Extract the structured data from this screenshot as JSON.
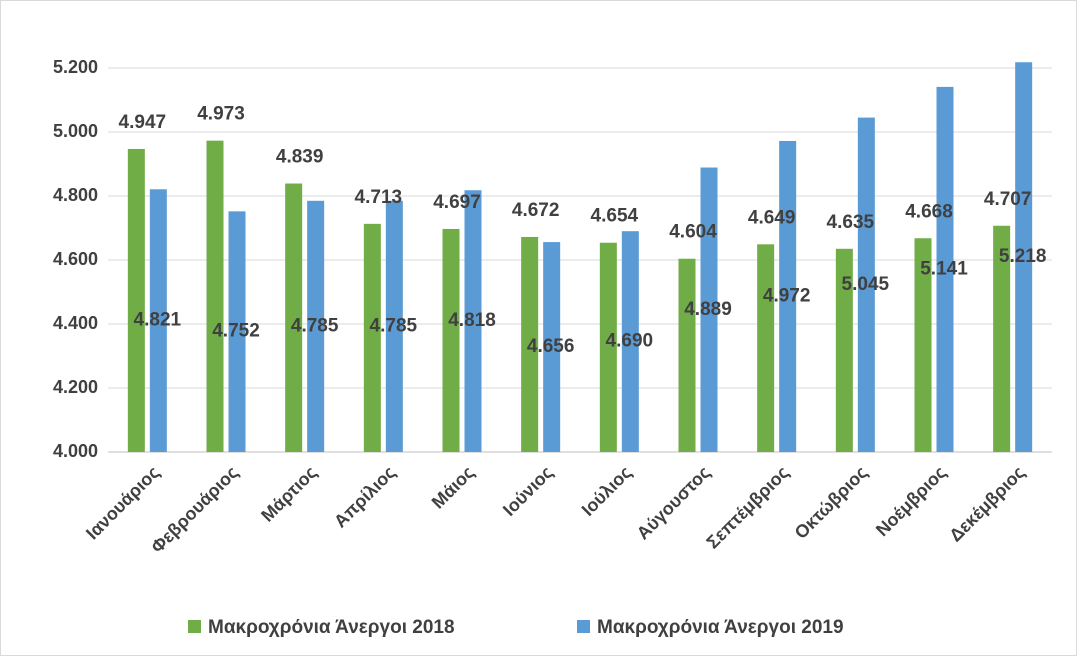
{
  "chart_data": {
    "type": "bar",
    "categories": [
      "Ιανουάριος",
      "Φεβρουάριος",
      "Μάρτιος",
      "Απρίλιος",
      "Μάιος",
      "Ιούνιος",
      "Ιούλιος",
      "Αύγουστος",
      "Σεπτέμβριος",
      "Οκτώβριος",
      "Νοέμβριος",
      "Δεκέμβριος"
    ],
    "series": [
      {
        "name": "Μακροχρόνια Άνεργοι 2018",
        "color": "#70ad47",
        "values": [
          4947,
          4973,
          4839,
          4713,
          4697,
          4672,
          4654,
          4604,
          4649,
          4635,
          4668,
          4707
        ],
        "value_labels": [
          "4.947",
          "4.973",
          "4.839",
          "4.713",
          "4.697",
          "4.672",
          "4.654",
          "4.604",
          "4.649",
          "4.635",
          "4.668",
          "4.707"
        ]
      },
      {
        "name": "Μακροχρόνια Άνεργοι 2019",
        "color": "#5b9bd5",
        "values": [
          4821,
          4752,
          4785,
          4785,
          4818,
          4656,
          4690,
          4889,
          4972,
          5045,
          5141,
          5218
        ],
        "value_labels": [
          "4.821",
          "4.752",
          "4.785",
          "4.785",
          "4.818",
          "4.656",
          "4.690",
          "4.889",
          "4.972",
          "5.045",
          "5.141",
          "5.218"
        ]
      }
    ],
    "ylim": [
      4000,
      5200
    ],
    "yticks": [
      {
        "value": 4000,
        "label": "4.000"
      },
      {
        "value": 4200,
        "label": "4.200"
      },
      {
        "value": 4400,
        "label": "4.400"
      },
      {
        "value": 4600,
        "label": "4.600"
      },
      {
        "value": 4800,
        "label": "4.800"
      },
      {
        "value": 5000,
        "label": "5.000"
      },
      {
        "value": 5200,
        "label": "5.200"
      }
    ],
    "grid": true,
    "legend": "bottom"
  }
}
